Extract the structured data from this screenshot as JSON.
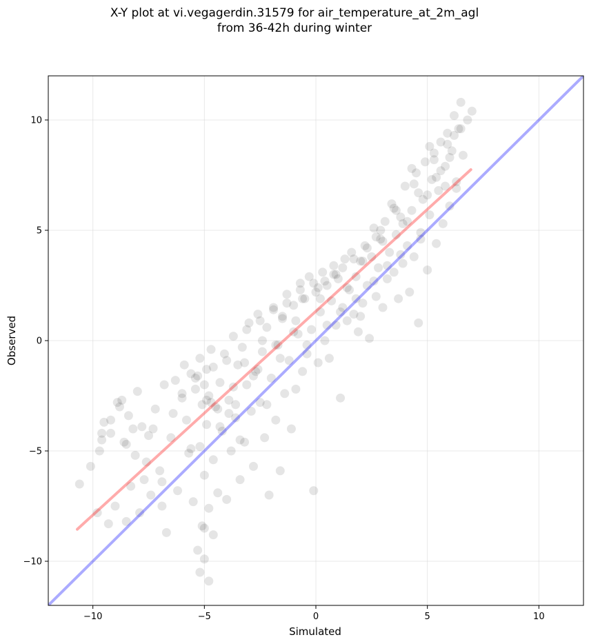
{
  "chart_data": {
    "type": "scatter",
    "title": "X-Y plot at vi.vegagerdin.31579 for air_temperature_at_2m_agl",
    "subtitle": "from 36-42h during winter",
    "xlabel": "Simulated",
    "ylabel": "Observed",
    "xlim": [
      -12,
      12
    ],
    "ylim": [
      -12,
      12
    ],
    "xticks": [
      -10,
      -5,
      0,
      5,
      10
    ],
    "yticks": [
      -10,
      -5,
      0,
      5,
      10
    ],
    "x_tick_labels": [
      "−10",
      "−5",
      "0",
      "5",
      "10"
    ],
    "y_tick_labels": [
      "−10",
      "−5",
      "0",
      "5",
      "10"
    ],
    "grid": true,
    "colors": {
      "points": "#000000",
      "fit_line": "#ff0000",
      "identity_line": "#0000ff"
    },
    "lines": [
      {
        "role": "fit",
        "color": "#ff0000",
        "x": [
          -10.7,
          6.95
        ],
        "y": [
          -8.55,
          7.75
        ]
      },
      {
        "role": "identity",
        "color": "#0000ff",
        "x": [
          -12,
          12
        ],
        "y": [
          -12,
          12
        ]
      }
    ],
    "points": {
      "x": [
        -10.6,
        -10.1,
        -9.8,
        -9.7,
        -9.6,
        -9.5,
        -9.3,
        -9.2,
        -9.0,
        -8.8,
        -8.7,
        -8.6,
        -8.5,
        -8.4,
        -8.3,
        -8.2,
        -8.0,
        -7.9,
        -7.8,
        -7.6,
        -7.5,
        -7.4,
        -7.2,
        -7.0,
        -6.9,
        -6.8,
        -6.7,
        -6.5,
        -6.3,
        -6.2,
        -6.0,
        -5.9,
        -5.8,
        -5.7,
        -5.6,
        -5.5,
        -5.4,
        -5.3,
        -5.2,
        -5.2,
        -5.1,
        -5.0,
        -5.0,
        -4.9,
        -4.9,
        -4.8,
        -4.8,
        -4.7,
        -4.6,
        -4.5,
        -4.4,
        -4.3,
        -4.2,
        -4.1,
        -4.0,
        -3.9,
        -3.8,
        -3.7,
        -3.6,
        -3.5,
        -3.4,
        -3.3,
        -3.2,
        -3.1,
        -3.0,
        -2.9,
        -2.8,
        -2.7,
        -2.6,
        -2.5,
        -2.4,
        -2.3,
        -2.2,
        -2.1,
        -2.0,
        -1.9,
        -1.8,
        -1.7,
        -1.6,
        -1.5,
        -1.4,
        -1.3,
        -1.2,
        -1.1,
        -1.0,
        -0.9,
        -0.8,
        -0.7,
        -0.6,
        -0.5,
        -0.4,
        -0.3,
        -0.2,
        -0.1,
        0.0,
        0.1,
        0.2,
        0.3,
        0.4,
        0.5,
        0.6,
        0.7,
        0.8,
        0.9,
        1.0,
        1.1,
        1.2,
        1.3,
        1.4,
        1.5,
        1.6,
        1.7,
        1.8,
        1.9,
        2.0,
        2.1,
        2.2,
        2.3,
        2.4,
        2.5,
        2.6,
        2.7,
        2.8,
        2.9,
        3.0,
        3.1,
        3.2,
        3.3,
        3.4,
        3.5,
        3.6,
        3.7,
        3.8,
        3.9,
        4.0,
        4.1,
        4.2,
        4.3,
        4.4,
        4.5,
        4.6,
        4.7,
        4.8,
        4.9,
        5.0,
        5.1,
        5.2,
        5.3,
        5.4,
        5.5,
        5.6,
        5.7,
        5.8,
        5.9,
        6.0,
        6.1,
        6.2,
        6.3,
        6.4,
        6.5,
        6.6,
        6.8,
        7.0,
        -9.6,
        -9.2,
        -8.9,
        -8.5,
        -8.1,
        -7.7,
        -7.3,
        -6.9,
        -6.4,
        -6.0,
        -5.6,
        -5.3,
        -5.1,
        -4.9,
        -4.6,
        -4.3,
        -4.0,
        -3.7,
        -3.4,
        -3.1,
        -2.8,
        -2.5,
        -2.2,
        -1.9,
        -1.6,
        -1.3,
        -1.0,
        -0.7,
        -0.4,
        -0.1,
        0.2,
        0.5,
        0.8,
        1.1,
        1.4,
        1.7,
        2.0,
        2.3,
        2.6,
        2.9,
        3.2,
        3.5,
        3.8,
        4.1,
        4.4,
        4.7,
        5.0,
        5.3,
        5.6,
        5.9,
        6.2,
        -5.0,
        -4.8,
        -4.6,
        -5.2,
        -4.4,
        -3.6,
        -2.6,
        -1.8,
        -0.9,
        0.1,
        0.9,
        1.8,
        2.7,
        3.6,
        4.3,
        5.1,
        5.8,
        6.3,
        -5.4,
        -5.0,
        -4.7,
        -3.9,
        -3.2,
        -2.4,
        -1.5,
        -0.6,
        0.4,
        1.2,
        2.1,
        3.0,
        3.9,
        4.6,
        5.4,
        6.0,
        6.5
      ],
      "y": [
        -6.5,
        -5.7,
        -7.8,
        -5.0,
        -4.5,
        -3.7,
        -8.3,
        -4.2,
        -7.5,
        -3.0,
        -2.7,
        -4.6,
        -8.2,
        -3.4,
        -6.6,
        -4.0,
        -2.3,
        -7.8,
        -3.9,
        -5.5,
        -4.3,
        -7.0,
        -3.1,
        -5.9,
        -6.4,
        -2.0,
        -8.7,
        -4.4,
        -1.8,
        -6.8,
        -2.6,
        -1.1,
        -3.6,
        -5.1,
        -1.5,
        -7.3,
        -2.2,
        -9.5,
        -0.8,
        -4.8,
        -2.9,
        -6.1,
        -8.5,
        -1.3,
        -3.8,
        -7.6,
        -2.5,
        -0.4,
        -5.4,
        -3.0,
        -6.9,
        -1.9,
        -4.1,
        -0.6,
        -7.2,
        -2.7,
        -5.0,
        0.2,
        -3.5,
        -1.1,
        -6.3,
        -0.3,
        -4.6,
        -2.0,
        0.8,
        -3.2,
        -5.7,
        -1.4,
        1.2,
        -2.8,
        -0.5,
        -4.4,
        0.6,
        -7.0,
        -1.7,
        1.5,
        -3.6,
        -0.2,
        -5.9,
        1.0,
        -2.4,
        2.1,
        -0.9,
        -4.0,
        1.6,
        -2.2,
        0.3,
        2.6,
        -1.4,
        1.9,
        -0.6,
        2.9,
        0.5,
        -6.8,
        2.2,
        -1.0,
        1.3,
        3.1,
        0.0,
        2.5,
        -0.8,
        1.8,
        3.4,
        0.7,
        2.8,
        -2.6,
        1.5,
        3.7,
        0.9,
        2.3,
        4.0,
        1.2,
        2.9,
        0.4,
        3.6,
        1.7,
        4.3,
        2.5,
        0.1,
        3.8,
        5.1,
        2.0,
        3.3,
        4.6,
        1.5,
        5.4,
        2.8,
        4.0,
        6.2,
        3.1,
        4.8,
        1.9,
        5.6,
        3.5,
        7.0,
        4.3,
        2.2,
        5.9,
        3.8,
        7.6,
        0.8,
        4.9,
        6.4,
        8.1,
        3.2,
        5.7,
        7.3,
        8.5,
        4.4,
        6.8,
        9.0,
        5.3,
        7.9,
        9.4,
        6.1,
        8.6,
        10.2,
        7.2,
        9.6,
        10.8,
        8.4,
        10.0,
        10.4,
        -4.2,
        -3.6,
        -2.8,
        -4.7,
        -5.2,
        -6.3,
        -4.0,
        -7.5,
        -3.3,
        -2.4,
        -4.9,
        -1.6,
        -8.4,
        -2.7,
        -1.2,
        -3.9,
        -0.9,
        -2.1,
        -4.5,
        0.5,
        -1.6,
        0.9,
        -2.9,
        1.4,
        -0.8,
        1.7,
        0.4,
        2.3,
        -0.2,
        2.6,
        1.9,
        0.7,
        3.0,
        1.3,
        2.4,
        3.7,
        1.1,
        4.2,
        2.7,
        5.0,
        3.4,
        6.0,
        3.9,
        5.4,
        7.1,
        4.6,
        6.6,
        8.2,
        7.7,
        8.9,
        9.3,
        -9.9,
        -10.9,
        -8.8,
        -10.5,
        -3.1,
        -2.9,
        -1.3,
        -0.2,
        0.9,
        2.4,
        3.0,
        1.9,
        4.7,
        5.9,
        7.8,
        8.8,
        7.0,
        6.9,
        -1.7,
        -2.0,
        -2.8,
        -3.3,
        -1.0,
        0.0,
        1.1,
        1.9,
        2.7,
        3.3,
        3.6,
        4.5,
        5.3,
        6.7,
        7.4,
        8.3,
        9.6
      ]
    }
  }
}
